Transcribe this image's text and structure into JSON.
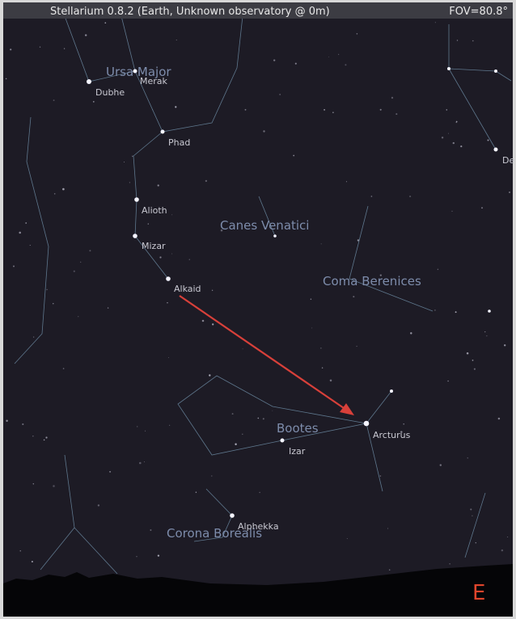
{
  "header": {
    "title": "Stellarium 0.8.2 (Earth, Unknown observatory @ 0m)",
    "fov": "FOV=80.8°"
  },
  "constellations": [
    "Ursa Major",
    "Canes Venatici",
    "Coma Berenices",
    "Bootes",
    "Corona Borealis"
  ],
  "stars": [
    "Dubhe",
    "Merak",
    "Phad",
    "Alioth",
    "Mizar",
    "Alkaid",
    "Arcturus",
    "Izar",
    "Alphekka",
    "De"
  ],
  "compass": "E"
}
